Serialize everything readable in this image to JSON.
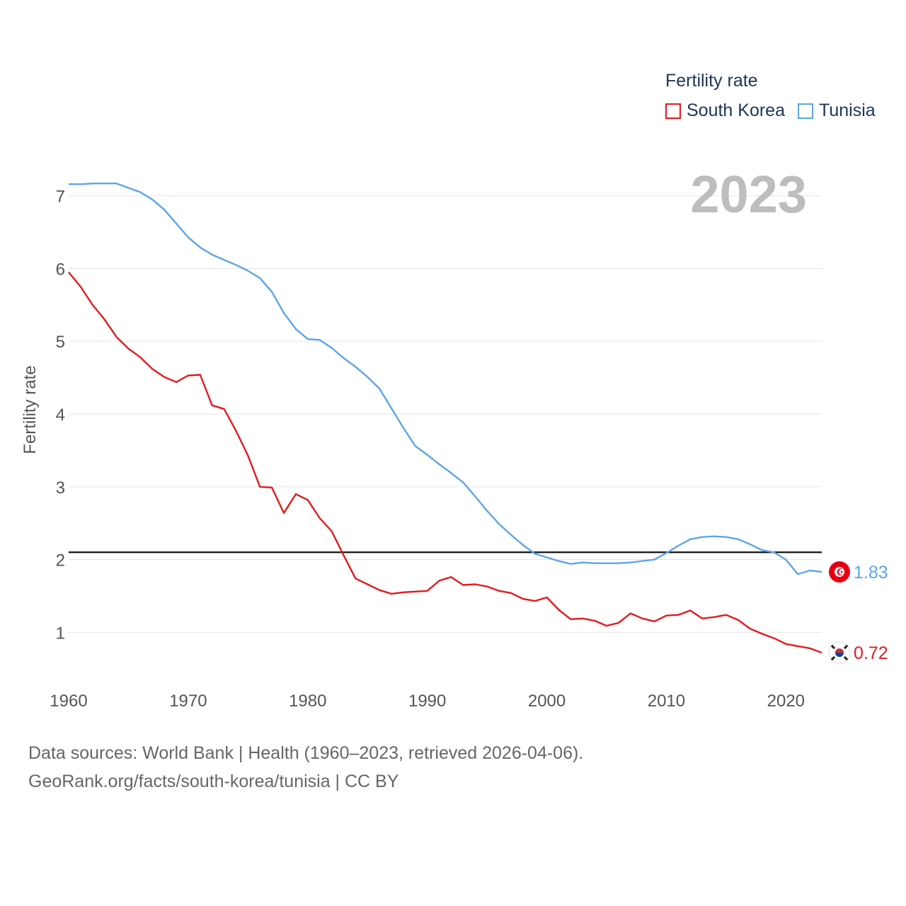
{
  "legend": {
    "title": "Fertility rate"
  },
  "footer": {
    "sources": "Data sources: World Bank | Health (1960–2023, retrieved 2026-04-06).",
    "link": "GeoRank.org/facts/south-korea/tunisia | CC BY"
  },
  "chart_data": {
    "type": "line",
    "title": "Fertility rate",
    "year_label": "2023",
    "ylabel": "Fertility rate",
    "xlabel": "",
    "xlim": [
      1960,
      2023
    ],
    "ylim": [
      0.4,
      7.6
    ],
    "xticks": [
      1960,
      1970,
      1980,
      1990,
      2000,
      2010,
      2020
    ],
    "yticks": [
      1,
      2,
      3,
      4,
      5,
      6,
      7
    ],
    "reference_line": 2.1,
    "x": [
      1960,
      1961,
      1962,
      1963,
      1964,
      1965,
      1966,
      1967,
      1968,
      1969,
      1970,
      1971,
      1972,
      1973,
      1974,
      1975,
      1976,
      1977,
      1978,
      1979,
      1980,
      1981,
      1982,
      1983,
      1984,
      1985,
      1986,
      1987,
      1988,
      1989,
      1990,
      1991,
      1992,
      1993,
      1994,
      1995,
      1996,
      1997,
      1998,
      1999,
      2000,
      2001,
      2002,
      2003,
      2004,
      2005,
      2006,
      2007,
      2008,
      2009,
      2010,
      2011,
      2012,
      2013,
      2014,
      2015,
      2016,
      2017,
      2018,
      2019,
      2020,
      2021,
      2022,
      2023
    ],
    "series": [
      {
        "name": "South Korea",
        "color": "#e41a1c",
        "end_label": "0.72",
        "flag": "south-korea-flag-icon",
        "values": [
          5.95,
          5.75,
          5.5,
          5.3,
          5.06,
          4.9,
          4.78,
          4.62,
          4.51,
          4.44,
          4.53,
          4.54,
          4.12,
          4.07,
          3.77,
          3.43,
          3.0,
          2.99,
          2.64,
          2.9,
          2.82,
          2.57,
          2.39,
          2.06,
          1.74,
          1.66,
          1.58,
          1.53,
          1.55,
          1.56,
          1.57,
          1.71,
          1.76,
          1.65,
          1.66,
          1.63,
          1.57,
          1.54,
          1.46,
          1.43,
          1.48,
          1.31,
          1.18,
          1.19,
          1.16,
          1.09,
          1.13,
          1.26,
          1.19,
          1.15,
          1.23,
          1.24,
          1.3,
          1.19,
          1.21,
          1.24,
          1.17,
          1.05,
          0.98,
          0.92,
          0.84,
          0.81,
          0.78,
          0.72
        ]
      },
      {
        "name": "Tunisia",
        "color": "#5da5e8",
        "end_label": "1.83",
        "flag": "tunisia-flag-icon",
        "values": [
          7.16,
          7.16,
          7.17,
          7.17,
          7.17,
          7.11,
          7.05,
          6.95,
          6.81,
          6.62,
          6.43,
          6.29,
          6.19,
          6.12,
          6.05,
          5.97,
          5.87,
          5.68,
          5.39,
          5.17,
          5.03,
          5.02,
          4.91,
          4.77,
          4.65,
          4.51,
          4.35,
          4.08,
          3.81,
          3.56,
          3.44,
          3.31,
          3.19,
          3.06,
          2.87,
          2.67,
          2.49,
          2.34,
          2.2,
          2.08,
          2.03,
          1.98,
          1.94,
          1.96,
          1.95,
          1.95,
          1.95,
          1.96,
          1.98,
          2.0,
          2.09,
          2.19,
          2.28,
          2.31,
          2.32,
          2.31,
          2.28,
          2.21,
          2.13,
          2.1,
          2.0,
          1.8,
          1.85,
          1.83
        ]
      }
    ]
  }
}
